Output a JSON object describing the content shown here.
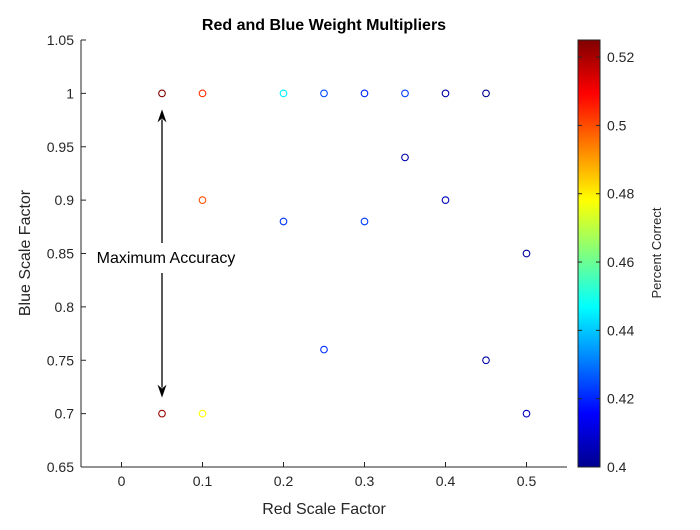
{
  "chart_data": {
    "type": "scatter",
    "title": "Red and Blue Weight Multipliers",
    "xlabel": "Red Scale Factor",
    "ylabel": "Blue Scale Factor",
    "xlim": [
      -0.05,
      0.55
    ],
    "ylim": [
      0.65,
      1.05
    ],
    "xticks": [
      0,
      0.1,
      0.2,
      0.3,
      0.4,
      0.5
    ],
    "yticks": [
      0.65,
      0.7,
      0.75,
      0.8,
      0.85,
      0.9,
      0.95,
      1,
      1.05
    ],
    "xtick_labels": [
      "0",
      "0.1",
      "0.2",
      "0.3",
      "0.4",
      "0.5"
    ],
    "ytick_labels": [
      "0.65",
      "0.7",
      "0.75",
      "0.8",
      "0.85",
      "0.9",
      "0.95",
      "1",
      "1.05"
    ],
    "grid": false,
    "marker": "open-circle",
    "colormap": "jet",
    "colorbar": {
      "label": "Percent Correct",
      "range": [
        0.4,
        0.525
      ],
      "ticks": [
        0.4,
        0.42,
        0.44,
        0.46,
        0.48,
        0.5,
        0.52
      ],
      "tick_labels": [
        "0.4",
        "0.42",
        "0.44",
        "0.46",
        "0.48",
        "0.5",
        "0.52"
      ]
    },
    "points": [
      {
        "x": 0.05,
        "y": 1.0,
        "value": 0.525
      },
      {
        "x": 0.1,
        "y": 1.0,
        "value": 0.503
      },
      {
        "x": 0.2,
        "y": 1.0,
        "value": 0.445
      },
      {
        "x": 0.25,
        "y": 1.0,
        "value": 0.425
      },
      {
        "x": 0.3,
        "y": 1.0,
        "value": 0.42
      },
      {
        "x": 0.35,
        "y": 1.0,
        "value": 0.423
      },
      {
        "x": 0.4,
        "y": 1.0,
        "value": 0.405
      },
      {
        "x": 0.45,
        "y": 1.0,
        "value": 0.402
      },
      {
        "x": 0.35,
        "y": 0.94,
        "value": 0.405
      },
      {
        "x": 0.1,
        "y": 0.9,
        "value": 0.5
      },
      {
        "x": 0.4,
        "y": 0.9,
        "value": 0.408
      },
      {
        "x": 0.2,
        "y": 0.88,
        "value": 0.422
      },
      {
        "x": 0.3,
        "y": 0.88,
        "value": 0.423
      },
      {
        "x": 0.5,
        "y": 0.85,
        "value": 0.404
      },
      {
        "x": 0.25,
        "y": 0.76,
        "value": 0.421
      },
      {
        "x": 0.45,
        "y": 0.75,
        "value": 0.405
      },
      {
        "x": 0.05,
        "y": 0.7,
        "value": 0.522
      },
      {
        "x": 0.1,
        "y": 0.7,
        "value": 0.478
      },
      {
        "x": 0.5,
        "y": 0.7,
        "value": 0.408
      }
    ],
    "annotation": {
      "text": "Maximum Accuracy",
      "arrow_x": 0.05,
      "arrow_top_y": 0.985,
      "arrow_bottom_y": 0.715
    }
  }
}
